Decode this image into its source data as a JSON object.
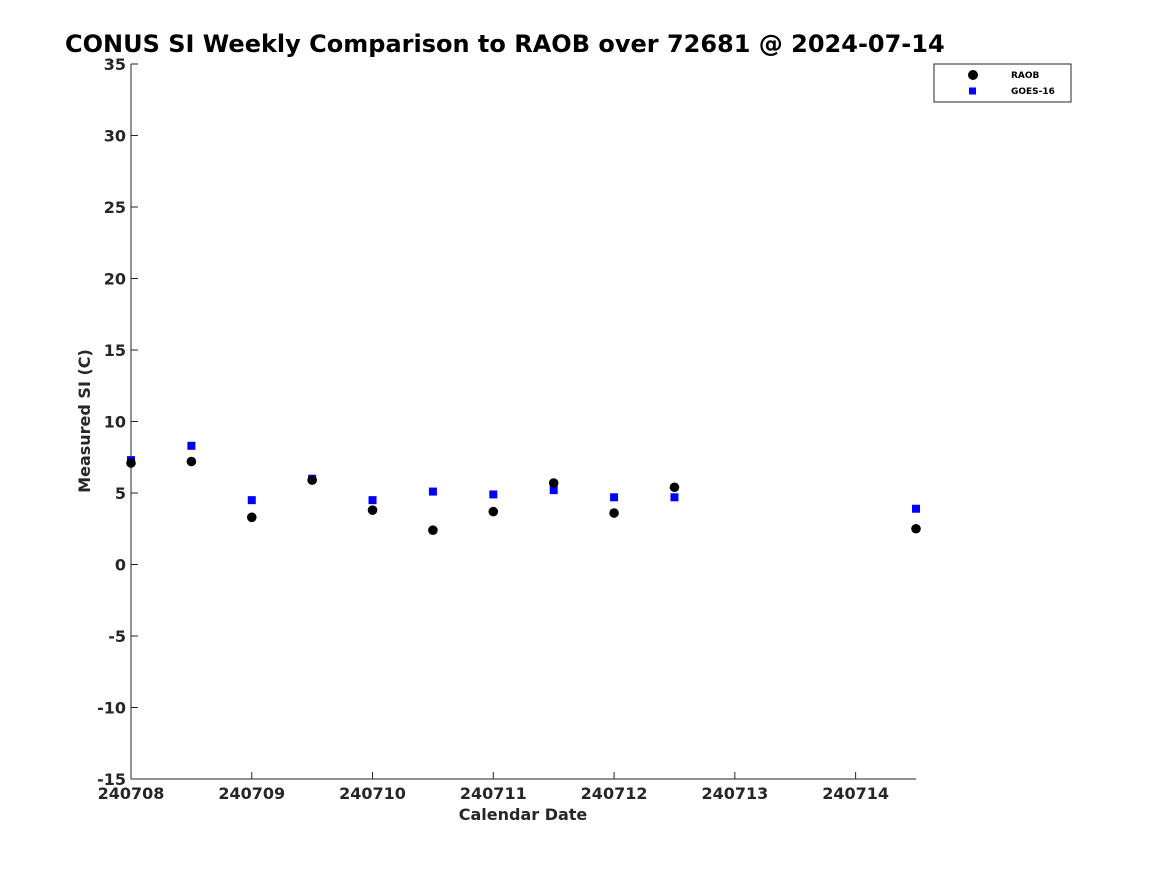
{
  "chart_data": {
    "type": "scatter",
    "title": "CONUS SI Weekly Comparison to RAOB over 72681 @ 2024-07-14",
    "xlabel": "Calendar Date",
    "ylabel": "Measured SI (C)",
    "xlim": [
      "2024-07-08",
      "2024-07-14T12:00"
    ],
    "ylim": [
      -15,
      35
    ],
    "xticks": [
      "240708",
      "240709",
      "240710",
      "240711",
      "240712",
      "240713",
      "240714"
    ],
    "xtick_dates": [
      "2024-07-08",
      "2024-07-09",
      "2024-07-10",
      "2024-07-11",
      "2024-07-12",
      "2024-07-13",
      "2024-07-14"
    ],
    "yticks": [
      -15,
      -10,
      -5,
      0,
      5,
      10,
      15,
      20,
      25,
      30,
      35
    ],
    "grid": false,
    "legend_position": "top-right",
    "series": [
      {
        "name": "RAOB",
        "marker": "circle",
        "color": "#000000",
        "x": [
          "2024-07-08T00:00",
          "2024-07-08T12:00",
          "2024-07-09T00:00",
          "2024-07-09T12:00",
          "2024-07-10T00:00",
          "2024-07-10T12:00",
          "2024-07-11T00:00",
          "2024-07-11T12:00",
          "2024-07-12T00:00",
          "2024-07-12T12:00",
          "2024-07-14T12:00"
        ],
        "y": [
          7.1,
          7.2,
          3.3,
          5.9,
          3.8,
          2.4,
          3.7,
          5.7,
          3.6,
          5.4,
          2.5
        ]
      },
      {
        "name": "GOES-16",
        "marker": "square",
        "color": "#0000ff",
        "x": [
          "2024-07-08T00:00",
          "2024-07-08T12:00",
          "2024-07-09T00:00",
          "2024-07-09T12:00",
          "2024-07-10T00:00",
          "2024-07-10T12:00",
          "2024-07-11T00:00",
          "2024-07-11T12:00",
          "2024-07-12T00:00",
          "2024-07-12T12:00",
          "2024-07-14T12:00"
        ],
        "y": [
          7.3,
          8.3,
          4.5,
          6.0,
          4.5,
          5.1,
          4.9,
          5.2,
          4.7,
          4.7,
          3.9
        ]
      }
    ]
  }
}
